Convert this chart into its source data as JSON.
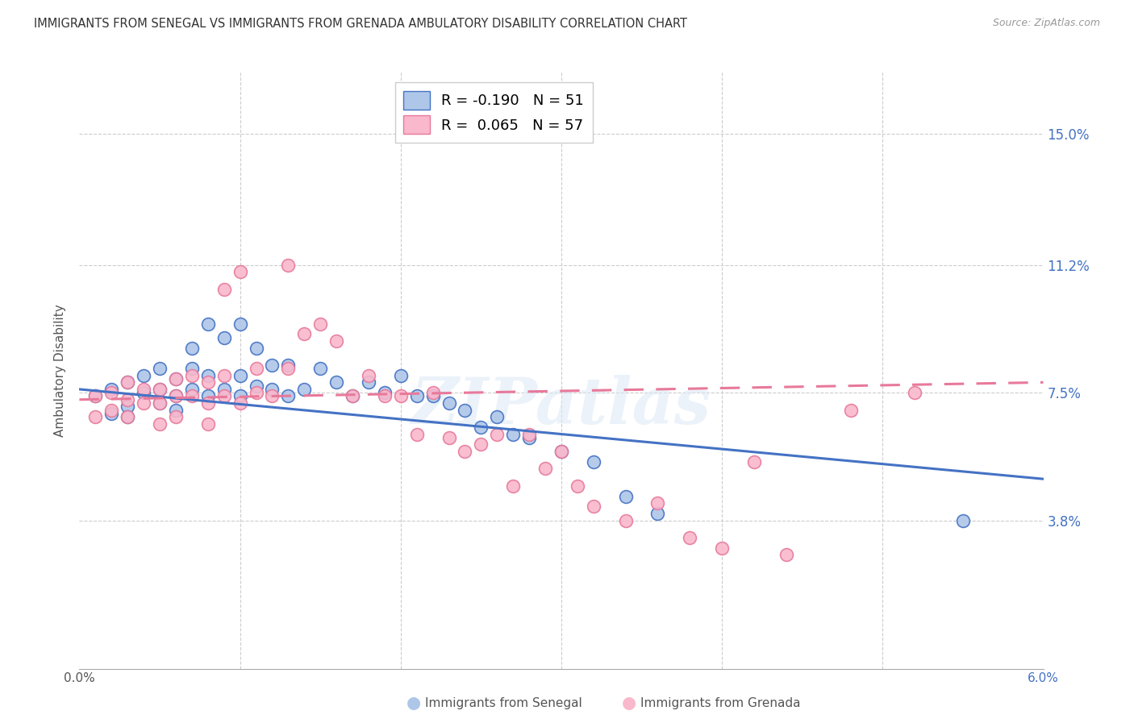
{
  "title": "IMMIGRANTS FROM SENEGAL VS IMMIGRANTS FROM GRENADA AMBULATORY DISABILITY CORRELATION CHART",
  "source": "Source: ZipAtlas.com",
  "ylabel": "Ambulatory Disability",
  "yticks": [
    "15.0%",
    "11.2%",
    "7.5%",
    "3.8%"
  ],
  "ytick_vals": [
    0.15,
    0.112,
    0.075,
    0.038
  ],
  "xlim": [
    0.0,
    0.06
  ],
  "ylim": [
    -0.005,
    0.168
  ],
  "watermark": "ZIPatlas",
  "legend_senegal_R": "-0.190",
  "legend_senegal_N": "51",
  "legend_grenada_R": "0.065",
  "legend_grenada_N": "57",
  "color_senegal": "#aec6e8",
  "color_grenada": "#f9b8cc",
  "color_senegal_line": "#4472c4",
  "color_grenada_line": "#e8799a",
  "color_ytick": "#4472c4",
  "senegal_x": [
    0.001,
    0.002,
    0.002,
    0.003,
    0.003,
    0.003,
    0.004,
    0.004,
    0.005,
    0.005,
    0.005,
    0.006,
    0.006,
    0.006,
    0.007,
    0.007,
    0.007,
    0.008,
    0.008,
    0.008,
    0.009,
    0.009,
    0.01,
    0.01,
    0.01,
    0.011,
    0.011,
    0.012,
    0.012,
    0.013,
    0.013,
    0.014,
    0.015,
    0.016,
    0.017,
    0.018,
    0.019,
    0.02,
    0.021,
    0.022,
    0.023,
    0.024,
    0.025,
    0.026,
    0.027,
    0.028,
    0.03,
    0.032,
    0.034,
    0.036,
    0.055
  ],
  "senegal_y": [
    0.074,
    0.069,
    0.076,
    0.071,
    0.078,
    0.068,
    0.075,
    0.08,
    0.072,
    0.076,
    0.082,
    0.074,
    0.079,
    0.07,
    0.076,
    0.082,
    0.088,
    0.074,
    0.08,
    0.095,
    0.076,
    0.091,
    0.074,
    0.08,
    0.095,
    0.077,
    0.088,
    0.076,
    0.083,
    0.074,
    0.083,
    0.076,
    0.082,
    0.078,
    0.074,
    0.078,
    0.075,
    0.08,
    0.074,
    0.074,
    0.072,
    0.07,
    0.065,
    0.068,
    0.063,
    0.062,
    0.058,
    0.055,
    0.045,
    0.04,
    0.038
  ],
  "grenada_x": [
    0.001,
    0.001,
    0.002,
    0.002,
    0.003,
    0.003,
    0.003,
    0.004,
    0.004,
    0.005,
    0.005,
    0.005,
    0.006,
    0.006,
    0.006,
    0.007,
    0.007,
    0.008,
    0.008,
    0.008,
    0.009,
    0.009,
    0.009,
    0.01,
    0.01,
    0.011,
    0.011,
    0.012,
    0.013,
    0.013,
    0.014,
    0.015,
    0.016,
    0.017,
    0.018,
    0.019,
    0.02,
    0.021,
    0.022,
    0.023,
    0.024,
    0.025,
    0.026,
    0.027,
    0.028,
    0.029,
    0.03,
    0.031,
    0.032,
    0.034,
    0.036,
    0.038,
    0.04,
    0.042,
    0.044,
    0.048,
    0.052
  ],
  "grenada_y": [
    0.074,
    0.068,
    0.075,
    0.07,
    0.073,
    0.068,
    0.078,
    0.072,
    0.076,
    0.072,
    0.066,
    0.076,
    0.074,
    0.079,
    0.068,
    0.074,
    0.08,
    0.072,
    0.078,
    0.066,
    0.074,
    0.08,
    0.105,
    0.072,
    0.11,
    0.075,
    0.082,
    0.074,
    0.082,
    0.112,
    0.092,
    0.095,
    0.09,
    0.074,
    0.08,
    0.074,
    0.074,
    0.063,
    0.075,
    0.062,
    0.058,
    0.06,
    0.063,
    0.048,
    0.063,
    0.053,
    0.058,
    0.048,
    0.042,
    0.038,
    0.043,
    0.033,
    0.03,
    0.055,
    0.028,
    0.07,
    0.075
  ]
}
